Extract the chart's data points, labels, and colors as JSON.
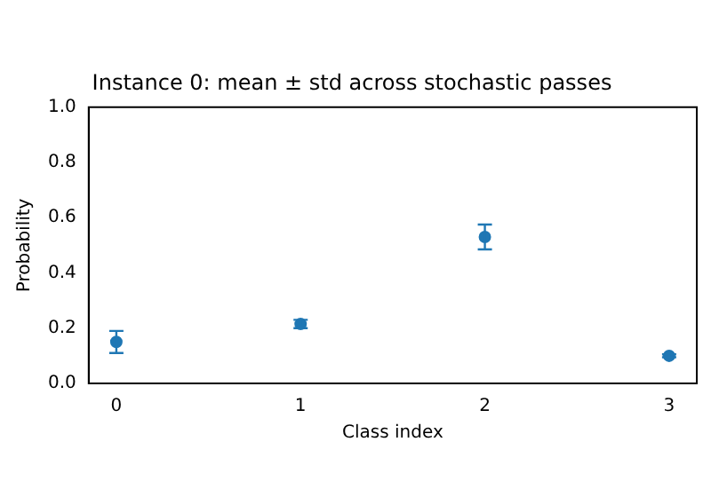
{
  "chart_data": {
    "type": "scatter",
    "title": "Instance 0: mean ± std across stochastic passes",
    "xlabel": "Class index",
    "ylabel": "Probability",
    "x": [
      0,
      1,
      2,
      3
    ],
    "values": [
      0.15,
      0.215,
      0.53,
      0.1
    ],
    "errors": [
      0.04,
      0.015,
      0.045,
      0.005
    ],
    "color": "#1f77b4",
    "xlim": [
      -0.15,
      3.15
    ],
    "xticks": [
      0,
      1,
      2,
      3
    ],
    "ylim": [
      0,
      1
    ],
    "yticks": [
      {
        "value": 0,
        "label": "0.0"
      },
      0.2,
      0.4,
      0.6,
      0.8,
      {
        "value": 1,
        "label": "1.0"
      }
    ],
    "marker": "circle",
    "grid": false,
    "legend": false
  }
}
